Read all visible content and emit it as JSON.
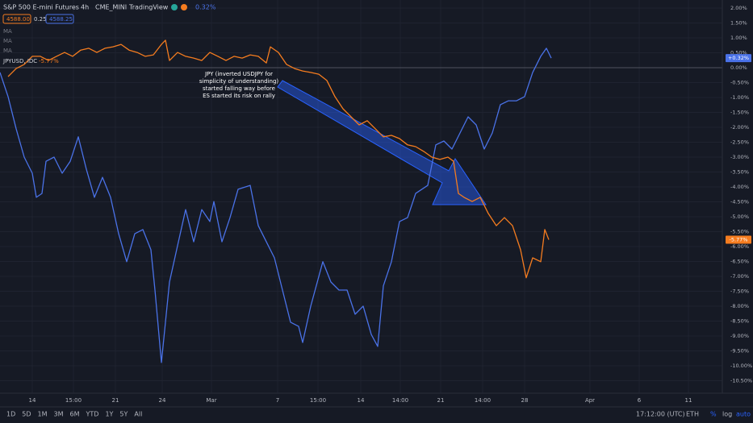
{
  "header": {
    "interval": "4h",
    "exchange": "CME_MINI",
    "source": "TradingView",
    "change": "0.32%",
    "bid": "4588.00",
    "spread": "0.25",
    "ask": "4588.25",
    "indicators": [
      "MA",
      "MA",
      "MA"
    ]
  },
  "toolbar": {
    "ranges": [
      "1D",
      "5D",
      "1M",
      "3M",
      "6M",
      "YTD",
      "1Y",
      "5Y",
      "All"
    ],
    "time": "17:12:00 (UTC)",
    "session": "ETH",
    "scales": [
      "%",
      "log",
      "auto"
    ]
  },
  "chart_data": {
    "type": "line",
    "annotation": [
      "JPY (inverted USDJPY for",
      "simplicity of understanding)",
      "started falling way before",
      "ES started its risk on rally"
    ],
    "xlim": [
      0,
      178.6
    ],
    "ylim": [
      -10.92,
      2.27
    ],
    "grid": true,
    "xticks": [
      {
        "value": 8,
        "label": "14"
      },
      {
        "value": 18.2,
        "label": "15:00"
      },
      {
        "value": 28.6,
        "label": "21"
      },
      {
        "value": 40.2,
        "label": "24"
      },
      {
        "value": 52.4,
        "label": "Mar"
      },
      {
        "value": 68.8,
        "label": "7"
      },
      {
        "value": 78.8,
        "label": "15:00"
      },
      {
        "value": 89.4,
        "label": "14"
      },
      {
        "value": 99.2,
        "label": "14:00"
      },
      {
        "value": 109.2,
        "label": "21"
      },
      {
        "value": 119.6,
        "label": "14:00"
      },
      {
        "value": 130,
        "label": "28"
      },
      {
        "value": 146.2,
        "label": "Apr"
      },
      {
        "value": 158.4,
        "label": "6"
      },
      {
        "value": 170.6,
        "label": "11"
      }
    ],
    "yticks": [
      {
        "value": 2,
        "label": "2.00%"
      },
      {
        "value": 1.5,
        "label": "1.50%"
      },
      {
        "value": 1,
        "label": "1.00%"
      },
      {
        "value": 0.5,
        "label": "0.50%"
      },
      {
        "value": 0,
        "label": "0.00%"
      },
      {
        "value": -0.5,
        "label": "-0.50%"
      },
      {
        "value": -1,
        "label": "-1.00%"
      },
      {
        "value": -1.5,
        "label": "-1.50%"
      },
      {
        "value": -2,
        "label": "-2.00%"
      },
      {
        "value": -2.5,
        "label": "-2.50%"
      },
      {
        "value": -3,
        "label": "-3.00%"
      },
      {
        "value": -3.5,
        "label": "-3.50%"
      },
      {
        "value": -4,
        "label": "-4.00%"
      },
      {
        "value": -4.5,
        "label": "-4.50%"
      },
      {
        "value": -5,
        "label": "-5.00%"
      },
      {
        "value": -5.5,
        "label": "-5.50%"
      },
      {
        "value": -6,
        "label": "-6.00%"
      },
      {
        "value": -6.5,
        "label": "-6.50%"
      },
      {
        "value": -7,
        "label": "-7.00%"
      },
      {
        "value": -7.5,
        "label": "-7.50%"
      },
      {
        "value": -8,
        "label": "-8.00%"
      },
      {
        "value": -8.5,
        "label": "-8.50%"
      },
      {
        "value": -9,
        "label": "-9.00%"
      },
      {
        "value": -9.5,
        "label": "-9.50%"
      },
      {
        "value": -10,
        "label": "-10.00%"
      },
      {
        "value": -10.5,
        "label": "-10.50%"
      }
    ],
    "series": [
      {
        "name": "S&P 500 E-mini Futures",
        "color": "#4a72e8",
        "last_label": "+0.32%",
        "x": [
          0,
          2,
          4,
          6,
          8,
          9,
          10.4,
          11.4,
          13.4,
          15.4,
          17.4,
          19.4,
          21.4,
          23.4,
          25.4,
          27.4,
          29.4,
          31.4,
          33.4,
          35.4,
          37.4,
          38.4,
          40,
          42,
          44,
          46,
          48,
          50,
          52,
          53,
          55,
          57,
          59,
          62,
          64,
          66,
          68,
          70,
          72,
          74,
          75,
          77,
          80,
          82,
          84,
          86,
          88,
          90,
          92,
          93.6,
          95,
          97,
          99,
          101,
          103,
          106,
          108,
          110,
          112,
          114,
          116,
          118,
          120,
          122,
          124,
          126,
          128,
          130,
          132,
          134,
          135.4,
          136.6
        ],
        "values": [
          -0.16,
          -0.97,
          -2.05,
          -3.0,
          -3.54,
          -4.35,
          -4.22,
          -3.14,
          -3.0,
          -3.54,
          -3.14,
          -2.32,
          -3.41,
          -4.35,
          -3.68,
          -4.35,
          -5.57,
          -6.51,
          -5.57,
          -5.43,
          -6.11,
          -7.46,
          -9.89,
          -7.19,
          -5.97,
          -4.76,
          -5.84,
          -4.76,
          -5.16,
          -4.49,
          -5.84,
          -5.03,
          -4.08,
          -3.95,
          -5.3,
          -5.84,
          -6.38,
          -7.46,
          -8.54,
          -8.68,
          -9.22,
          -8.0,
          -6.51,
          -7.19,
          -7.46,
          -7.46,
          -8.27,
          -8.0,
          -8.95,
          -9.35,
          -7.32,
          -6.51,
          -5.16,
          -5.03,
          -4.22,
          -3.95,
          -2.59,
          -2.46,
          -2.73,
          -2.19,
          -1.65,
          -1.92,
          -2.73,
          -2.19,
          -1.24,
          -1.11,
          -1.11,
          -0.97,
          -0.16,
          0.38,
          0.65,
          0.32
        ]
      },
      {
        "name": "JPYUSD, IDC",
        "color": "#f57c1f",
        "last_label": "-5.77%",
        "x": [
          2,
          4,
          6,
          8,
          10,
          12,
          14,
          16,
          18,
          20,
          22,
          24,
          26,
          28,
          30,
          32,
          34,
          36,
          38,
          40,
          41,
          42,
          44,
          46,
          48,
          50,
          52,
          54,
          56,
          58,
          60,
          62,
          64,
          66,
          67,
          69,
          71,
          73,
          75,
          77,
          79,
          81,
          83,
          85,
          87,
          89,
          91,
          93,
          95,
          97,
          99,
          101,
          103,
          105,
          107,
          109,
          111,
          112.4,
          113.6,
          115,
          117,
          119,
          121,
          123,
          125,
          127,
          129,
          130.4,
          132,
          134,
          135,
          136
        ],
        "values": [
          -0.3,
          -0.03,
          0.11,
          0.38,
          0.38,
          0.24,
          0.38,
          0.51,
          0.38,
          0.59,
          0.65,
          0.51,
          0.65,
          0.7,
          0.78,
          0.59,
          0.51,
          0.38,
          0.43,
          0.78,
          0.92,
          0.24,
          0.51,
          0.38,
          0.32,
          0.24,
          0.51,
          0.38,
          0.24,
          0.38,
          0.32,
          0.43,
          0.38,
          0.16,
          0.7,
          0.51,
          0.11,
          -0.03,
          -0.11,
          -0.16,
          -0.22,
          -0.43,
          -0.97,
          -1.38,
          -1.65,
          -1.92,
          -1.78,
          -2.05,
          -2.32,
          -2.27,
          -2.38,
          -2.59,
          -2.65,
          -2.81,
          -3.0,
          -3.08,
          -3.0,
          -3.14,
          -4.22,
          -4.35,
          -4.49,
          -4.35,
          -4.89,
          -5.3,
          -5.03,
          -5.3,
          -6.11,
          -7.05,
          -6.38,
          -6.51,
          -5.43,
          -5.77
        ]
      }
    ]
  }
}
